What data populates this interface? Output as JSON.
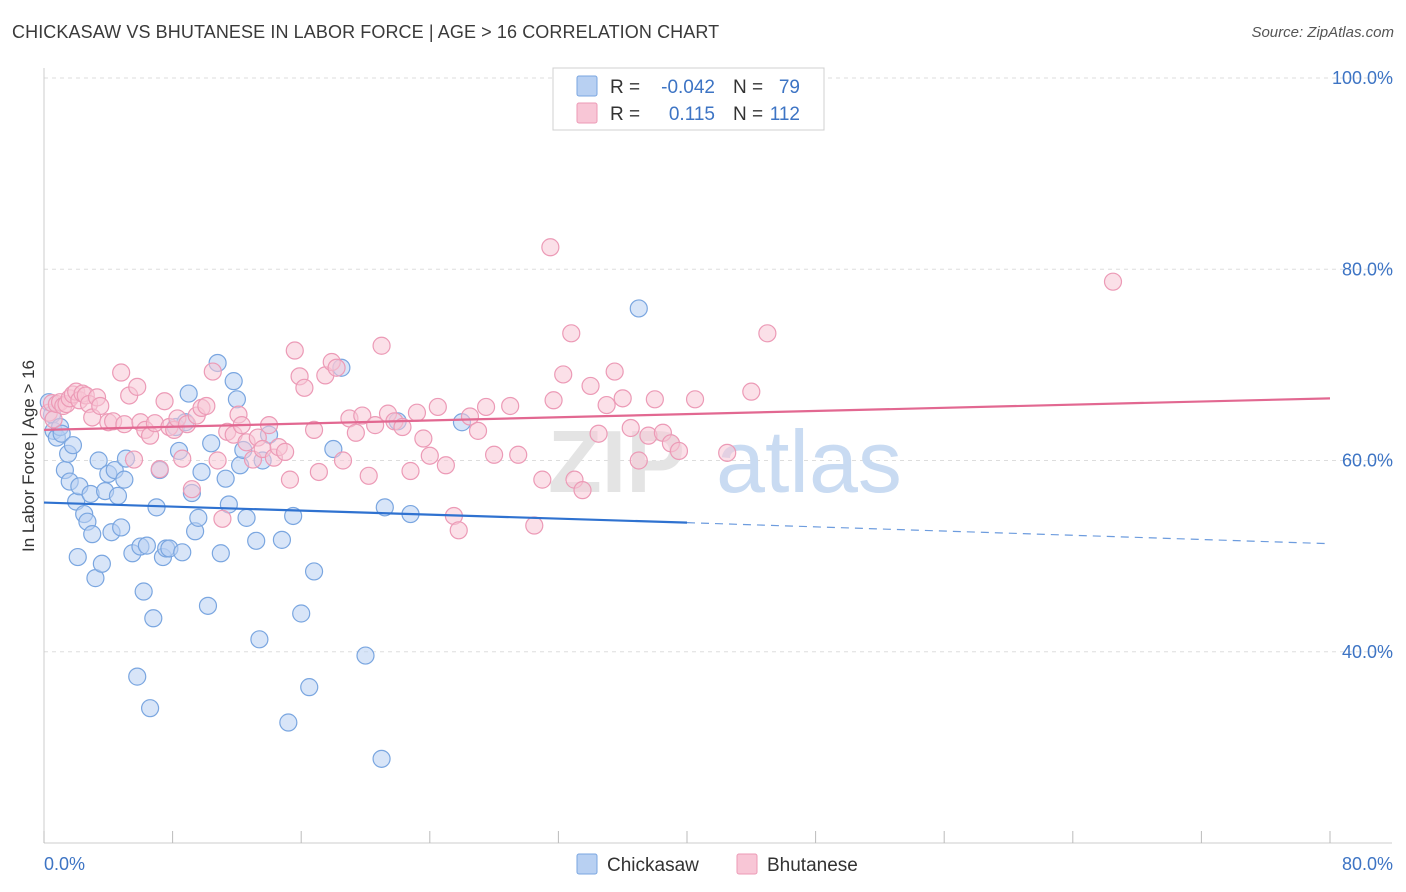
{
  "title": "CHICKASAW VS BHUTANESE IN LABOR FORCE | AGE > 16 CORRELATION CHART",
  "source": "Source: ZipAtlas.com",
  "watermark": {
    "zip": "ZIP",
    "atlas": "atlas"
  },
  "colors": {
    "chickasaw_fill": "#b8d0f2",
    "chickasaw_stroke": "#7aa6e0",
    "chickasaw_line": "#2f72d0",
    "bhutanese_fill": "#f8c6d6",
    "bhutanese_stroke": "#ec9ab6",
    "bhutanese_line": "#e26891",
    "tick_label": "#3d74c4",
    "grid": "#dddddd"
  },
  "legend": {
    "r_label": "R =",
    "n_label": "N =",
    "rows": [
      {
        "series": "Chickasaw",
        "r": "-0.042",
        "n": "79"
      },
      {
        "series": "Bhutanese",
        "r": "0.115",
        "n": "112"
      }
    ]
  },
  "bottom_legend": [
    "Chickasaw",
    "Bhutanese"
  ],
  "chart_data": {
    "type": "scatter",
    "ylabel": "In Labor Force | Age > 16",
    "xlim": [
      0,
      80
    ],
    "ylim": [
      20,
      100
    ],
    "x_tick_labels": [
      {
        "value": 0,
        "label": "0.0%"
      },
      {
        "value": 80,
        "label": "80.0%"
      }
    ],
    "y_tick_labels": [
      {
        "value": 100,
        "label": "100.0%"
      },
      {
        "value": 80,
        "label": "80.0%"
      },
      {
        "value": 60,
        "label": "60.0%"
      },
      {
        "value": 40,
        "label": "40.0%"
      }
    ],
    "grid": true,
    "legend_position": "top-center",
    "series": [
      {
        "name": "Chickasaw",
        "trend": {
          "x0": 0,
          "y0": 55.6,
          "x1": 40,
          "y1": 53.5,
          "dash_to_x": 80,
          "dash_to_y": 51.3
        },
        "points": [
          [
            0.3,
            66.1
          ],
          [
            0.5,
            64.8
          ],
          [
            0.6,
            63.1
          ],
          [
            0.8,
            62.4
          ],
          [
            1.0,
            63.5
          ],
          [
            1.1,
            62.8
          ],
          [
            1.3,
            59.0
          ],
          [
            1.5,
            60.7
          ],
          [
            1.6,
            57.8
          ],
          [
            1.8,
            61.6
          ],
          [
            2.0,
            55.7
          ],
          [
            2.1,
            49.9
          ],
          [
            2.2,
            57.3
          ],
          [
            2.5,
            54.4
          ],
          [
            2.7,
            53.6
          ],
          [
            2.9,
            56.5
          ],
          [
            3.0,
            52.3
          ],
          [
            3.2,
            47.7
          ],
          [
            3.4,
            60.0
          ],
          [
            3.6,
            49.2
          ],
          [
            3.8,
            56.8
          ],
          [
            4.0,
            58.6
          ],
          [
            4.2,
            52.5
          ],
          [
            4.4,
            59.0
          ],
          [
            4.6,
            56.3
          ],
          [
            4.8,
            53.0
          ],
          [
            5.0,
            58.0
          ],
          [
            5.1,
            60.2
          ],
          [
            5.5,
            50.3
          ],
          [
            5.8,
            37.4
          ],
          [
            6.0,
            51.0
          ],
          [
            6.2,
            46.3
          ],
          [
            6.4,
            51.1
          ],
          [
            6.6,
            34.1
          ],
          [
            6.8,
            43.5
          ],
          [
            7.0,
            55.1
          ],
          [
            7.2,
            59.0
          ],
          [
            7.4,
            49.9
          ],
          [
            7.6,
            50.8
          ],
          [
            7.8,
            50.8
          ],
          [
            8.2,
            63.5
          ],
          [
            8.4,
            61.0
          ],
          [
            8.6,
            50.4
          ],
          [
            8.8,
            64.0
          ],
          [
            9.0,
            67.0
          ],
          [
            9.2,
            56.6
          ],
          [
            9.4,
            52.6
          ],
          [
            9.6,
            54.0
          ],
          [
            9.8,
            58.8
          ],
          [
            10.2,
            44.8
          ],
          [
            10.4,
            61.8
          ],
          [
            10.8,
            70.2
          ],
          [
            11.0,
            50.3
          ],
          [
            11.3,
            58.1
          ],
          [
            11.5,
            55.4
          ],
          [
            11.8,
            68.3
          ],
          [
            12.0,
            66.4
          ],
          [
            12.2,
            59.5
          ],
          [
            12.4,
            61.1
          ],
          [
            12.6,
            54.0
          ],
          [
            13.2,
            51.6
          ],
          [
            13.4,
            41.3
          ],
          [
            13.6,
            60.0
          ],
          [
            14.0,
            62.7
          ],
          [
            14.8,
            51.7
          ],
          [
            15.2,
            32.6
          ],
          [
            15.5,
            54.2
          ],
          [
            16.0,
            44.0
          ],
          [
            16.5,
            36.3
          ],
          [
            16.8,
            48.4
          ],
          [
            18.0,
            61.2
          ],
          [
            18.5,
            69.7
          ],
          [
            20.0,
            39.6
          ],
          [
            21.0,
            28.8
          ],
          [
            21.2,
            55.1
          ],
          [
            22.0,
            64.1
          ],
          [
            22.8,
            54.4
          ],
          [
            26.0,
            64.0
          ],
          [
            37.0,
            75.9
          ]
        ]
      },
      {
        "name": "Bhutanese",
        "trend": {
          "x0": 0,
          "y0": 63.2,
          "x1": 80,
          "y1": 66.5
        },
        "points": [
          [
            0.3,
            65.0
          ],
          [
            0.5,
            66.0
          ],
          [
            0.6,
            64.3
          ],
          [
            0.8,
            65.9
          ],
          [
            1.0,
            66.1
          ],
          [
            1.2,
            65.7
          ],
          [
            1.4,
            65.9
          ],
          [
            1.6,
            66.5
          ],
          [
            1.8,
            66.9
          ],
          [
            2.0,
            67.2
          ],
          [
            2.2,
            66.3
          ],
          [
            2.4,
            67.0
          ],
          [
            2.6,
            66.8
          ],
          [
            2.8,
            65.9
          ],
          [
            3.0,
            64.5
          ],
          [
            3.3,
            66.6
          ],
          [
            3.5,
            65.7
          ],
          [
            4.0,
            64.0
          ],
          [
            4.3,
            64.1
          ],
          [
            4.8,
            69.2
          ],
          [
            5.0,
            63.8
          ],
          [
            5.3,
            66.8
          ],
          [
            5.6,
            60.1
          ],
          [
            5.8,
            67.7
          ],
          [
            6.0,
            64.0
          ],
          [
            6.3,
            63.2
          ],
          [
            6.6,
            62.6
          ],
          [
            6.9,
            63.9
          ],
          [
            7.2,
            59.1
          ],
          [
            7.5,
            66.2
          ],
          [
            7.8,
            63.5
          ],
          [
            8.1,
            63.2
          ],
          [
            8.3,
            64.4
          ],
          [
            8.6,
            60.2
          ],
          [
            8.9,
            63.8
          ],
          [
            9.2,
            57.0
          ],
          [
            9.5,
            64.7
          ],
          [
            9.8,
            65.5
          ],
          [
            10.1,
            65.7
          ],
          [
            10.5,
            69.3
          ],
          [
            10.8,
            60.0
          ],
          [
            11.1,
            53.9
          ],
          [
            11.4,
            63.0
          ],
          [
            11.8,
            62.7
          ],
          [
            12.1,
            64.8
          ],
          [
            12.3,
            63.7
          ],
          [
            12.6,
            61.9
          ],
          [
            13.0,
            60.1
          ],
          [
            13.3,
            62.4
          ],
          [
            13.6,
            61.2
          ],
          [
            14.0,
            63.7
          ],
          [
            14.3,
            60.3
          ],
          [
            14.6,
            61.4
          ],
          [
            15.0,
            60.9
          ],
          [
            15.3,
            58.0
          ],
          [
            15.6,
            71.5
          ],
          [
            15.9,
            68.8
          ],
          [
            16.2,
            67.6
          ],
          [
            16.8,
            63.2
          ],
          [
            17.1,
            58.8
          ],
          [
            17.5,
            68.9
          ],
          [
            17.9,
            70.3
          ],
          [
            18.2,
            69.7
          ],
          [
            18.6,
            60.0
          ],
          [
            19.0,
            64.4
          ],
          [
            19.4,
            62.9
          ],
          [
            19.8,
            64.7
          ],
          [
            20.2,
            58.4
          ],
          [
            20.6,
            63.7
          ],
          [
            21.0,
            72.0
          ],
          [
            21.4,
            64.9
          ],
          [
            21.8,
            64.1
          ],
          [
            22.3,
            63.5
          ],
          [
            22.8,
            58.9
          ],
          [
            23.2,
            65.0
          ],
          [
            23.6,
            62.3
          ],
          [
            24.0,
            60.5
          ],
          [
            24.5,
            65.6
          ],
          [
            25.0,
            59.5
          ],
          [
            25.5,
            54.2
          ],
          [
            25.8,
            52.7
          ],
          [
            26.5,
            64.6
          ],
          [
            27.0,
            63.1
          ],
          [
            27.5,
            65.6
          ],
          [
            28.0,
            60.6
          ],
          [
            29.0,
            65.7
          ],
          [
            29.5,
            60.6
          ],
          [
            30.5,
            53.2
          ],
          [
            31.0,
            58.0
          ],
          [
            31.5,
            82.3
          ],
          [
            31.7,
            66.3
          ],
          [
            32.3,
            69.0
          ],
          [
            32.8,
            73.3
          ],
          [
            33.0,
            58.0
          ],
          [
            33.5,
            56.9
          ],
          [
            34.0,
            67.8
          ],
          [
            34.5,
            62.8
          ],
          [
            35.0,
            65.8
          ],
          [
            35.5,
            69.3
          ],
          [
            36.0,
            66.5
          ],
          [
            36.5,
            63.4
          ],
          [
            37.0,
            60.0
          ],
          [
            37.6,
            62.6
          ],
          [
            38.0,
            66.4
          ],
          [
            38.5,
            62.9
          ],
          [
            39.0,
            61.8
          ],
          [
            39.5,
            61.0
          ],
          [
            40.5,
            66.4
          ],
          [
            42.5,
            60.8
          ],
          [
            44.0,
            67.2
          ],
          [
            45.0,
            73.3
          ],
          [
            66.5,
            78.7
          ]
        ]
      }
    ]
  }
}
